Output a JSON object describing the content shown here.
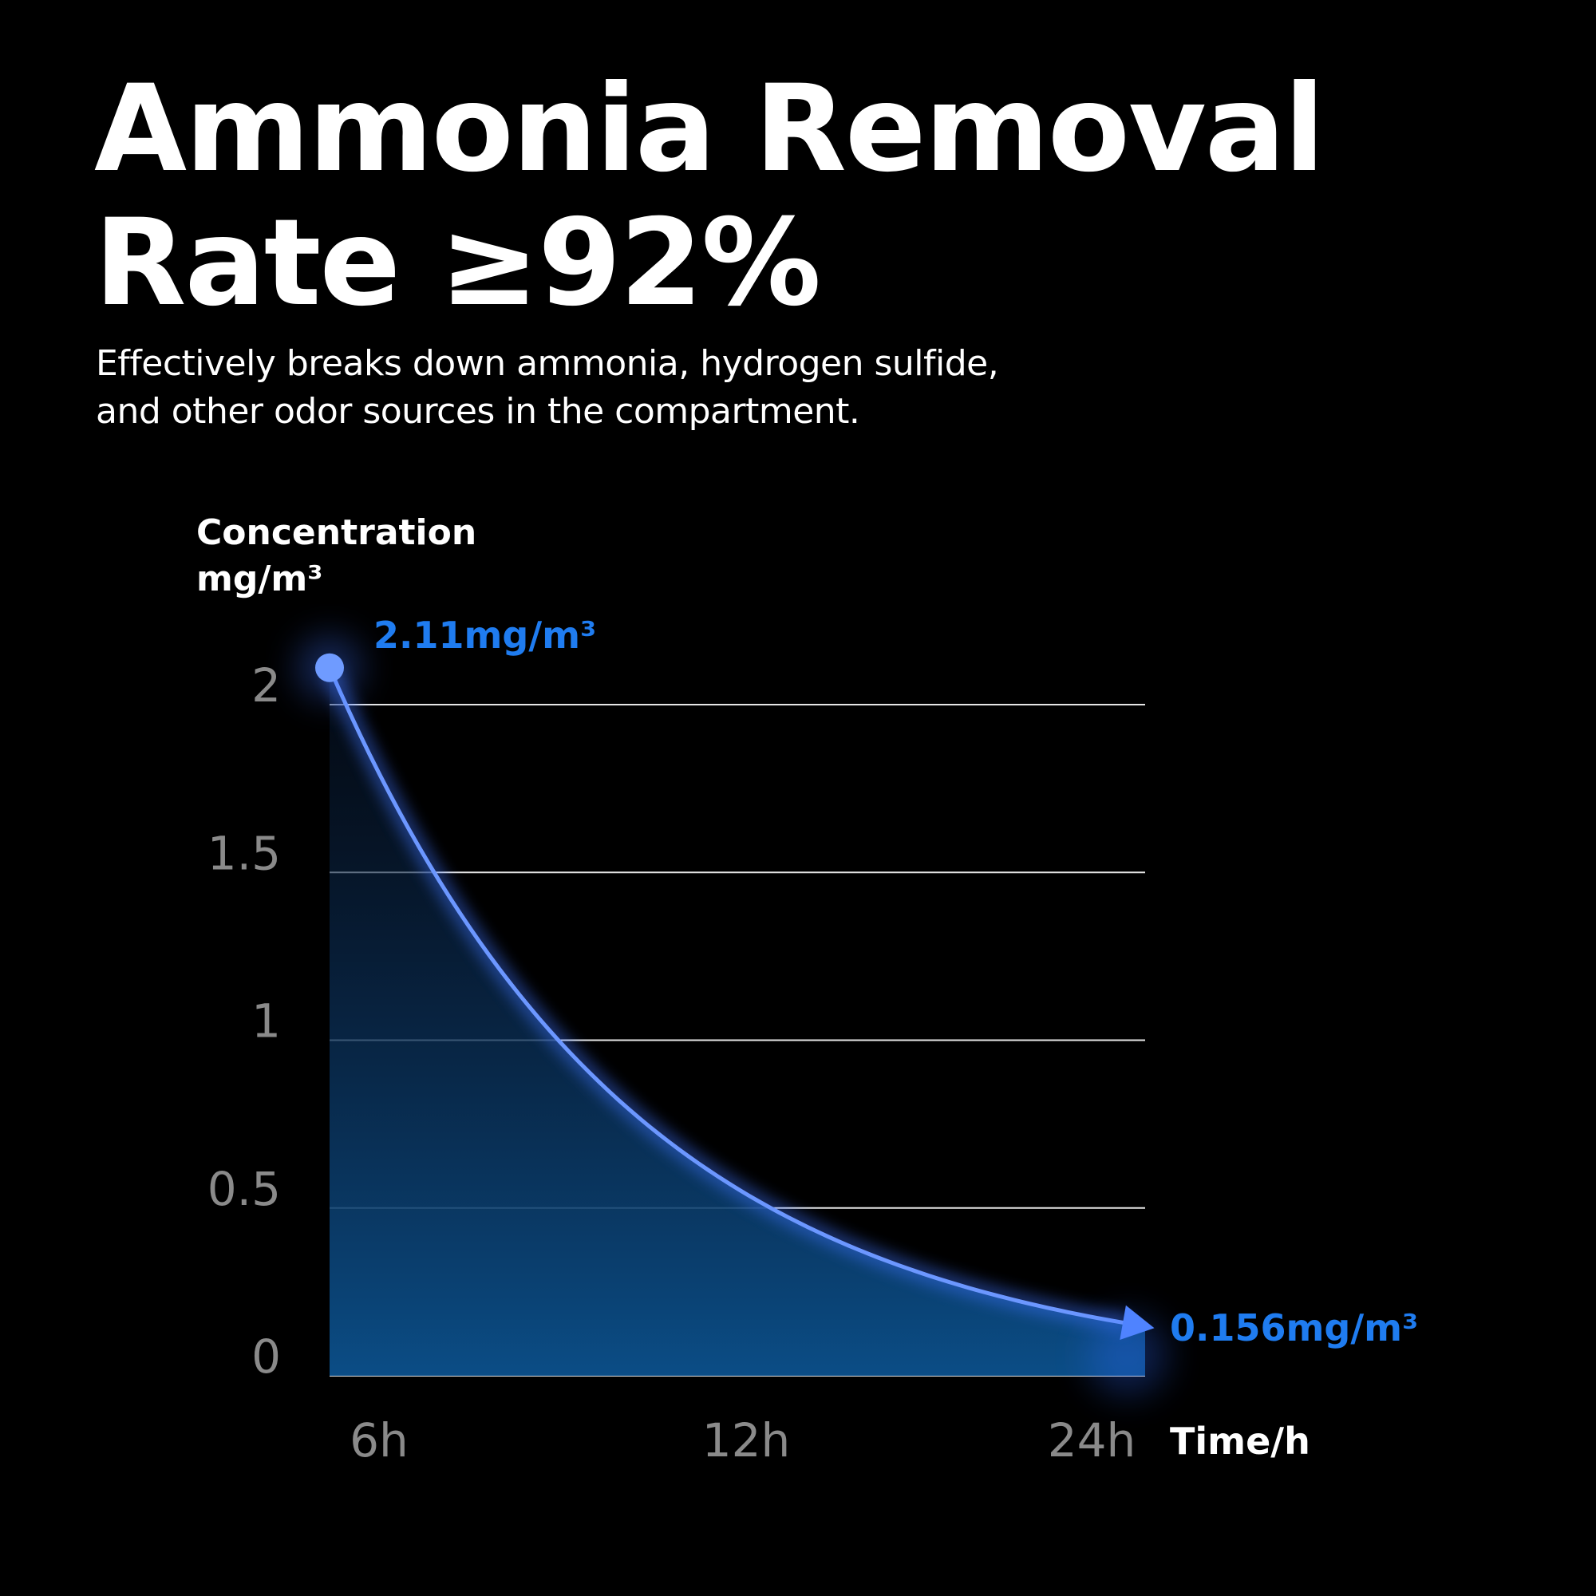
{
  "header": {
    "title_line1": "Ammonia Removal",
    "title_line2": "Rate ≥92%",
    "subtitle_line1": "Effectively breaks down ammonia, hydrogen sulfide,",
    "subtitle_line2": "and other odor sources in the compartment."
  },
  "colors": {
    "background": "#000000",
    "accent": "#1f7cf0",
    "curve": "#6c97ff",
    "tick_text": "#8a8a8a",
    "grid": "#ffffff"
  },
  "chart_data": {
    "type": "area",
    "ylabel_line1": "Concentration",
    "ylabel_line2": "mg/m³",
    "xlabel": "Time/h",
    "yticks": [
      "0",
      "0.5",
      "1",
      "1.5",
      "2"
    ],
    "xticks": [
      "6h",
      "12h",
      "24h"
    ],
    "ylim": [
      0,
      2
    ],
    "grid": true,
    "series": [
      {
        "x": [
          "6h",
          "24h"
        ],
        "values": [
          2.11,
          0.156
        ]
      }
    ],
    "annotations": [
      {
        "text": "2.11mg/m³",
        "x": "6h",
        "y": 2.11
      },
      {
        "text": "0.156mg/m³",
        "x": "24h",
        "y": 0.156
      }
    ]
  }
}
